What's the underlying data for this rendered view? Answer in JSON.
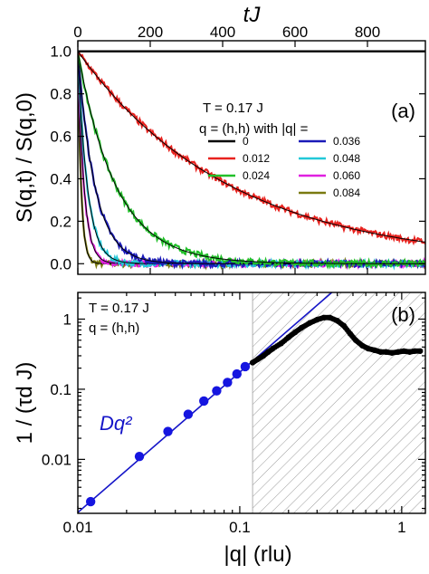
{
  "chart_data": [
    {
      "type": "line",
      "panel_label": "(a)",
      "xlabel": "tJ",
      "ylabel": "S(q,t) / S(q,0)",
      "xlim": [
        0,
        960
      ],
      "ylim": [
        -0.05,
        1.05
      ],
      "xticks": [
        "0",
        "200",
        "400",
        "600",
        "800"
      ],
      "yticks": [
        "0.0",
        "0.2",
        "0.4",
        "0.6",
        "0.8",
        "1.0"
      ],
      "annotations": [
        "T = 0.17 J",
        "q = (h,h)  with |q| ="
      ],
      "legend_title": "",
      "series": [
        {
          "name": "0",
          "color": "#000000",
          "tau": null
        },
        {
          "name": "0.012",
          "color": "#e8221e",
          "tau": 420
        },
        {
          "name": "0.024",
          "color": "#22c02a",
          "tau": 105
        },
        {
          "name": "0.036",
          "color": "#1a1ab8",
          "tau": 47
        },
        {
          "name": "0.048",
          "color": "#22c8d8",
          "tau": 26
        },
        {
          "name": "0.060",
          "color": "#e020e0",
          "tau": 17
        },
        {
          "name": "0.084",
          "color": "#7a7a10",
          "tau": 9
        }
      ],
      "fits": "black exponential fit curves over each colored series"
    },
    {
      "type": "scatter",
      "panel_label": "(b)",
      "xlabel": "|q| (rlu)",
      "ylabel": "1 / (τd J)",
      "xscale": "log",
      "yscale": "log",
      "xlim": [
        0.01,
        1.4
      ],
      "ylim": [
        0.0017,
        2.4
      ],
      "xticks": [
        "0.01",
        "0.1",
        "1"
      ],
      "yticks": [
        "0.01",
        "0.1",
        "1"
      ],
      "annotations": [
        "T = 0.17 J",
        "q = (h,h)"
      ],
      "fit_label": "Dq²",
      "fit_coefficient_D": 17.5,
      "shaded_region_from_q": 0.12,
      "blue_points": {
        "q": [
          0.012,
          0.024,
          0.036,
          0.048,
          0.06,
          0.072,
          0.084,
          0.096,
          0.108
        ],
        "inv_tau": [
          0.0025,
          0.011,
          0.025,
          0.044,
          0.068,
          0.095,
          0.125,
          0.165,
          0.21
        ]
      },
      "black_points": {
        "q": [
          0.12,
          0.13,
          0.14,
          0.15,
          0.16,
          0.18,
          0.2,
          0.22,
          0.24,
          0.27,
          0.3,
          0.33,
          0.36,
          0.4,
          0.44,
          0.48,
          0.52,
          0.57,
          0.62,
          0.68,
          0.74,
          0.8,
          0.87,
          0.95,
          1.03,
          1.12,
          1.2,
          1.3
        ],
        "inv_tau": [
          0.24,
          0.27,
          0.3,
          0.34,
          0.38,
          0.45,
          0.55,
          0.65,
          0.75,
          0.88,
          0.98,
          1.05,
          1.05,
          0.95,
          0.8,
          0.62,
          0.5,
          0.42,
          0.38,
          0.36,
          0.34,
          0.34,
          0.33,
          0.34,
          0.35,
          0.34,
          0.35,
          0.35
        ]
      }
    }
  ]
}
